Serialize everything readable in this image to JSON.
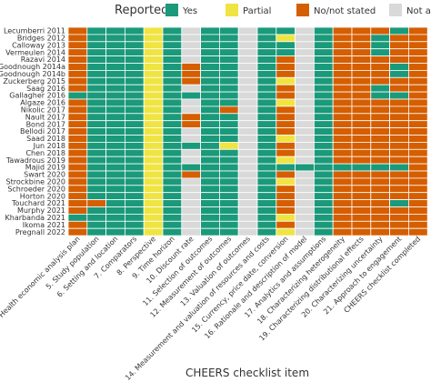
{
  "chart_data": {
    "type": "heatmap",
    "title": "",
    "xlabel": "CHEERS checklist item",
    "ylabel": "",
    "legend": {
      "title": "Reported",
      "position": "top",
      "entries": [
        {
          "key": "Y",
          "label": "Yes",
          "color": "#1a9a7a"
        },
        {
          "key": "P",
          "label": "Partial",
          "color": "#f0e442"
        },
        {
          "key": "N",
          "label": "No/not stated",
          "color": "#d55e00"
        },
        {
          "key": "A",
          "label": "Not applicable",
          "color": "#d9d9d9"
        }
      ]
    },
    "rows": [
      "Lecumberri 2011",
      "Bridges 2012",
      "Calloway 2013",
      "Vermeulen 2014",
      "Razavi 2014",
      "Goodnough 2014a",
      "Goodnough 2014b",
      "Zuckerberg 2015",
      "Saag 2016",
      "Gallagher 2016",
      "Algaze 2016",
      "Nikolic 2017",
      "Nault 2017",
      "Bond 2017",
      "Bellodi 2017",
      "Saad 2018",
      "Jun 2018",
      "Chen 2018",
      "Tawadrous 2019",
      "Majid 2019",
      "Swart 2020",
      "Strockbine 2020",
      "Schroeder 2020",
      "Horton 2020",
      "Touchard 2021",
      "Murphy 2021",
      "Kharbanda 2021",
      "Ikoma 2021",
      "Pregnall 2022"
    ],
    "columns": [
      "4. Health economic analysis plan",
      "5. Study population",
      "6. Setting and location",
      "7. Comparators",
      "8. Perspective",
      "9. Time horizon",
      "10. Discount rate",
      "11. Selection of outcomes",
      "12. Measurement of outcomes",
      "13. Valuation of outcomes",
      "14. Measurement and valuation of resources and costs",
      "15. Currency, price date, conversion",
      "16. Rationale and description of model",
      "17. Analytics and assumptions",
      "18. Characterizing heterogeneity",
      "19. Characterizing distributional effects",
      "20. Characterizing uncertainty",
      "21. Approach to engagement",
      "CHEERS checklist completed"
    ],
    "cells": [
      "NYYYPYAYYAYYAYNNNYN",
      "NYYYPYAYYAYPAYNNYNN",
      "NYYYPYAYYAYYAYNNYNN",
      "NYYYPYAYYAYYAYNNYNN",
      "NYYYPYAYYAYNAYNNNNN",
      "NYYYPYNYYAYNAYNNNYN",
      "NYYYPYNYYAYNAYNNNYN",
      "NYYYPYNYYAYPAYNNNNN",
      "NYYYPYAYYAYNAYNNYNN",
      "YYYYPYYYYAYNAYNNYYN",
      "NYYYPYAYYAYPAYNNNNN",
      "NYYYPYAYNAYNAYNNNNN",
      "NYYYPYNYYAYNAYNNNNN",
      "NYYYPYNYYAYNAYNNNNN",
      "NYYYPYAYYAYNAYNNNNN",
      "NYYYPYAYYAYPAYNNNNN",
      "NYYYPYYYPAYNAYNNNNN",
      "NYYYPYAYYAYNAYNNNNN",
      "NYYYPYAYYAYPAYNNNNN",
      "NYYYPYYYYAYYYYYYYYN",
      "NYYYPYNYYAYNAYNNNNN",
      "NYYYPYAYYAYPAYNNNNN",
      "NYYYPYAYYAYNAYNNNNN",
      "NYYYPYAYYAYNAYNNNNN",
      "NNYYPYAYYAYNAYNNNYN",
      "NYYYPYAYYAYNAYNNNNN",
      "YYYYPYAYYAYPAYNNNNN",
      "NYYYPYAYYAYNAYNNNNN",
      "NYYYPYAYYAYPAYNNNNN"
    ]
  }
}
